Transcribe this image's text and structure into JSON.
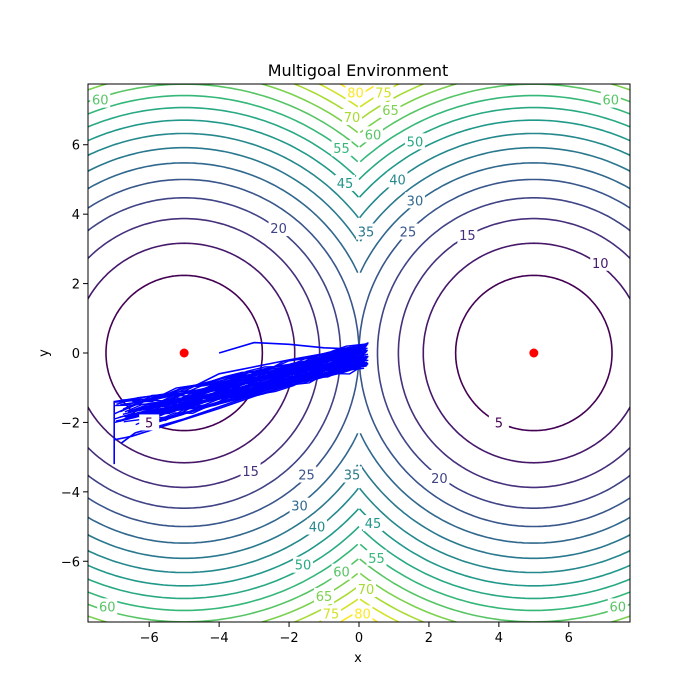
{
  "chart_data": {
    "type": "contour",
    "title": "Multigoal Environment",
    "xlabel": "x",
    "ylabel": "y",
    "xlim": [
      -7.75,
      7.75
    ],
    "ylim": [
      -7.75,
      7.75
    ],
    "x_ticks": [
      -6,
      -4,
      -2,
      0,
      2,
      4,
      6
    ],
    "y_ticks": [
      -6,
      -4,
      -2,
      0,
      2,
      4,
      6
    ],
    "tick_labels_x": [
      "−6",
      "−4",
      "−2",
      "0",
      "2",
      "4",
      "6"
    ],
    "tick_labels_y": [
      "−6",
      "−4",
      "−2",
      "0",
      "2",
      "4",
      "6"
    ],
    "grid": false,
    "colormap": "viridis",
    "goals": [
      {
        "x": -5,
        "y": 0,
        "color": "#ff0000"
      },
      {
        "x": 5,
        "y": 0,
        "color": "#ff0000"
      }
    ],
    "contour_levels": [
      5,
      10,
      15,
      20,
      25,
      30,
      35,
      40,
      45,
      50,
      55,
      60,
      65,
      70,
      75,
      80
    ],
    "contour_function": "min((x-5)^2 + y^2, (x+5)^2 + y^2)",
    "contour_labels": [
      {
        "text": "5",
        "x": 4.0,
        "y": -2.0
      },
      {
        "text": "10",
        "x": 6.9,
        "y": 2.6
      },
      {
        "text": "15",
        "x": 3.1,
        "y": 3.4
      },
      {
        "text": "15",
        "x": -3.1,
        "y": -3.4
      },
      {
        "text": "20",
        "x": -2.3,
        "y": 3.6
      },
      {
        "text": "20",
        "x": 2.3,
        "y": -3.6
      },
      {
        "text": "25",
        "x": 1.4,
        "y": 3.5
      },
      {
        "text": "25",
        "x": -1.5,
        "y": -3.5
      },
      {
        "text": "30",
        "x": 1.6,
        "y": 4.4
      },
      {
        "text": "30",
        "x": -1.7,
        "y": -4.4
      },
      {
        "text": "35",
        "x": 0.2,
        "y": 3.5
      },
      {
        "text": "35",
        "x": -0.2,
        "y": -3.5
      },
      {
        "text": "40",
        "x": 1.1,
        "y": 5.0
      },
      {
        "text": "40",
        "x": -1.2,
        "y": -5.0
      },
      {
        "text": "45",
        "x": -0.4,
        "y": 4.9
      },
      {
        "text": "45",
        "x": 0.4,
        "y": -4.9
      },
      {
        "text": "50",
        "x": 1.6,
        "y": 6.1
      },
      {
        "text": "50",
        "x": -1.6,
        "y": -6.1
      },
      {
        "text": "55",
        "x": -0.5,
        "y": 5.9
      },
      {
        "text": "55",
        "x": 0.5,
        "y": -5.9
      },
      {
        "text": "60",
        "x": -7.4,
        "y": 7.3
      },
      {
        "text": "60",
        "x": 7.2,
        "y": 7.3
      },
      {
        "text": "60",
        "x": -7.2,
        "y": -7.3
      },
      {
        "text": "60",
        "x": 7.4,
        "y": -7.3
      },
      {
        "text": "60",
        "x": 0.4,
        "y": 6.3
      },
      {
        "text": "60",
        "x": -0.5,
        "y": -6.3
      },
      {
        "text": "65",
        "x": 0.9,
        "y": 7.0
      },
      {
        "text": "65",
        "x": -1.0,
        "y": -7.0
      },
      {
        "text": "70",
        "x": -0.2,
        "y": 6.8
      },
      {
        "text": "70",
        "x": 0.2,
        "y": -6.8
      },
      {
        "text": "75",
        "x": 0.7,
        "y": 7.5
      },
      {
        "text": "75",
        "x": -0.8,
        "y": -7.5
      },
      {
        "text": "80",
        "x": -0.1,
        "y": 7.5
      },
      {
        "text": "80",
        "x": 0.1,
        "y": -7.5
      },
      {
        "text": "5",
        "x": -6.0,
        "y": -2.0
      }
    ],
    "trajectory": {
      "color": "#0000ff",
      "description": "many overlapping blue paths between (-7,-3) and (0.2,0.2)",
      "bands": {
        "x_start": -7.0,
        "x_end": 0.2,
        "y_start_low": -2.0,
        "y_start_high": -1.4,
        "y_end_low": -0.4,
        "y_end_high": 0.25
      },
      "extra_paths": [
        [
          [
            -4.0,
            0.0
          ],
          [
            -3.0,
            0.3
          ],
          [
            -2.0,
            0.25
          ],
          [
            -1.0,
            0.15
          ],
          [
            0.2,
            0.1
          ]
        ],
        [
          [
            -7.0,
            -3.2
          ],
          [
            -7.0,
            -1.4
          ],
          [
            -5.0,
            -1.1
          ],
          [
            -4.0,
            -0.6
          ],
          [
            -2.0,
            -0.2
          ],
          [
            0.2,
            0.2
          ]
        ],
        [
          [
            -6.8,
            -2.6
          ],
          [
            -6.4,
            -2.3
          ],
          [
            -5.0,
            -1.9
          ],
          [
            -3.0,
            -1.2
          ],
          [
            -1.0,
            -0.5
          ],
          [
            0.1,
            -0.2
          ]
        ],
        [
          [
            -7.0,
            -2.5
          ],
          [
            -6.5,
            -2.4
          ],
          [
            -4.0,
            -1.6
          ],
          [
            -2.0,
            -0.9
          ],
          [
            0.0,
            -0.1
          ]
        ]
      ]
    }
  }
}
